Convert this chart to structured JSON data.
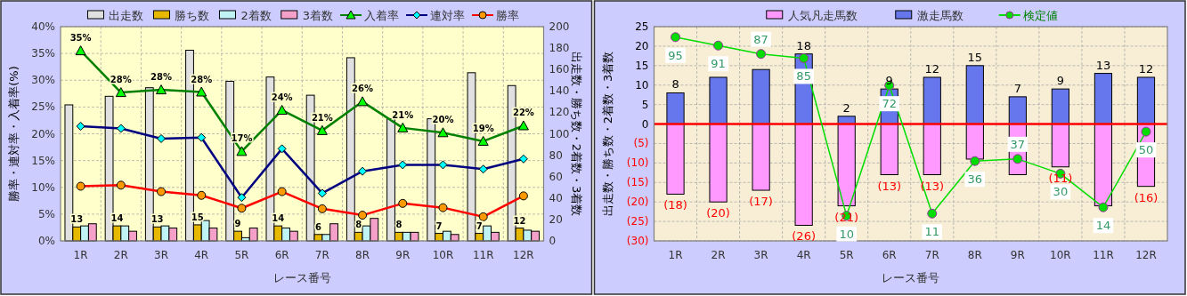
{
  "chart_data": [
    {
      "type": "bar",
      "xlabel": "レース番号",
      "ylabel": "勝率・連対率・入着率(%)",
      "y2label": "出走数・勝ち数・2着数・3着数",
      "categories": [
        "1R",
        "2R",
        "3R",
        "4R",
        "5R",
        "6R",
        "7R",
        "8R",
        "9R",
        "10R",
        "11R",
        "12R"
      ],
      "ylim": [
        0,
        40
      ],
      "yticks": [
        {
          "value": 0,
          "label": "0%"
        },
        {
          "value": 5,
          "label": "5%"
        },
        {
          "value": 10,
          "label": "10%"
        },
        {
          "value": 15,
          "label": "15%"
        },
        {
          "value": 20,
          "label": "20%"
        },
        {
          "value": 25,
          "label": "25%"
        },
        {
          "value": 30,
          "label": "30%"
        },
        {
          "value": 35,
          "label": "35%"
        },
        {
          "value": 40,
          "label": "40%"
        }
      ],
      "y2lim": [
        0,
        200
      ],
      "y2ticks": [
        0,
        20,
        40,
        60,
        80,
        100,
        120,
        140,
        160,
        180,
        200
      ],
      "grid": true,
      "legend": "top",
      "series": [
        {
          "name": "出走数",
          "color": "#e0e0e0",
          "axis": "y2",
          "values": [
            127,
            135,
            143,
            178,
            149,
            153,
            136,
            171,
            114,
            114,
            157,
            145
          ]
        },
        {
          "name": "勝ち数",
          "color": "#e6b800",
          "axis": "y2",
          "values": [
            13,
            14,
            13,
            15,
            9,
            14,
            6,
            8,
            8,
            7,
            7,
            12
          ],
          "value_labels": [
            "13",
            "14",
            "13",
            "15",
            "9",
            "14",
            "6",
            "8",
            "8",
            "7",
            "7",
            "12"
          ]
        },
        {
          "name": "2着数",
          "color": "#c0f4f4",
          "axis": "y2",
          "values": [
            14,
            14,
            14,
            19,
            3,
            12,
            6,
            14,
            8,
            9,
            14,
            10
          ]
        },
        {
          "name": "3着数",
          "color": "#f4a0c8",
          "axis": "y2",
          "values": [
            16,
            9,
            12,
            12,
            12,
            9,
            16,
            21,
            8,
            6,
            8,
            9
          ]
        },
        {
          "name": "入着率",
          "type": "line",
          "color": "#008000",
          "marker": "triangle",
          "values": [
            35.5,
            27.7,
            28.2,
            27.8,
            16.7,
            24.4,
            20.6,
            26.0,
            21.1,
            20.2,
            18.6,
            21.5
          ],
          "value_labels": [
            "35%",
            "28%",
            "28%",
            "28%",
            "17%",
            "24%",
            "21%",
            "26%",
            "21%",
            "20%",
            "19%",
            "22%"
          ]
        },
        {
          "name": "連対率",
          "type": "line",
          "color": "#000080",
          "marker": "diamond",
          "values": [
            21.4,
            21.0,
            19.1,
            19.3,
            8.1,
            17.2,
            8.9,
            13.0,
            14.2,
            14.2,
            13.4,
            15.3
          ]
        },
        {
          "name": "勝率",
          "type": "line",
          "color": "#ff0000",
          "marker": "circle",
          "values": [
            10.2,
            10.4,
            9.2,
            8.5,
            6.1,
            9.2,
            6.0,
            4.8,
            7.0,
            6.2,
            4.5,
            8.4
          ]
        }
      ]
    },
    {
      "type": "bar",
      "stacked": true,
      "xlabel": "レース番号",
      "ylabel": "出走数・勝ち数・2着数・3着数",
      "categories": [
        "1R",
        "2R",
        "3R",
        "4R",
        "5R",
        "6R",
        "7R",
        "8R",
        "9R",
        "10R",
        "11R",
        "12R"
      ],
      "ylim": [
        -30,
        25
      ],
      "yticks": [
        {
          "value": -30,
          "label": "(30)"
        },
        {
          "value": -25,
          "label": "(25)"
        },
        {
          "value": -20,
          "label": "(20)"
        },
        {
          "value": -15,
          "label": "(15)"
        },
        {
          "value": -10,
          "label": "(10)"
        },
        {
          "value": -5,
          "label": "(5)"
        },
        0,
        5,
        10,
        15,
        20,
        25
      ],
      "grid": true,
      "legend": "top",
      "y2lim": [
        -2,
        100
      ],
      "ref_lines": [
        {
          "axis": "y",
          "value": 0,
          "color": "#ff0000"
        }
      ],
      "series": [
        {
          "name": "人気凡走馬数",
          "color": "#ff99ff",
          "values": [
            -18,
            -20,
            -17,
            -26,
            -21,
            -13,
            -13,
            -9,
            -13,
            -11,
            -21,
            -16
          ],
          "value_labels": [
            "(18)",
            "(20)",
            "(17)",
            "(26)",
            "(21)",
            "(13)",
            "(13)",
            null,
            null,
            "(11)",
            null,
            "(16)"
          ]
        },
        {
          "name": "激走馬数",
          "color": "#6677ee",
          "values": [
            8,
            12,
            14,
            18,
            2,
            9,
            12,
            15,
            7,
            9,
            13,
            12
          ],
          "value_labels": [
            "8",
            null,
            null,
            "18",
            "2",
            "9",
            "12",
            "15",
            "7",
            "9",
            "13",
            "12"
          ]
        },
        {
          "name": "検定値",
          "type": "line",
          "color": "#00dd00",
          "marker": "circle",
          "axis": "y2",
          "values": [
            95,
            91,
            87,
            85,
            10,
            72,
            11,
            36,
            37,
            30,
            14,
            50
          ],
          "value_labels": [
            "95",
            "91",
            "87",
            "85",
            "10",
            "72",
            "11",
            "36",
            "37",
            "30",
            "14",
            "50"
          ]
        }
      ]
    }
  ]
}
